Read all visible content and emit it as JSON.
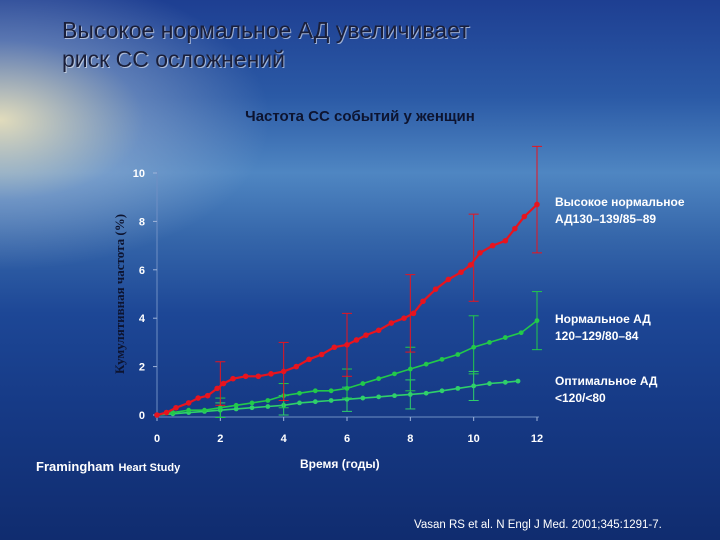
{
  "slide": {
    "title_line1": "Высокое нормальное АД увеличивает",
    "title_line2": "риск СС осложнений",
    "citation": "Vasan RS et al. N Engl J Med. 2001;345:1291-7.",
    "study_name": "Framingham",
    "study_suffix": "Heart Study"
  },
  "chart_data": {
    "type": "line",
    "title": "Частота СС событий у женщин",
    "xlabel": "Время (годы)",
    "ylabel": "Кумулятивная частота (%)",
    "xlim": [
      0,
      12
    ],
    "ylim": [
      0,
      10
    ],
    "xticks": [
      "0",
      "2",
      "4",
      "6",
      "8",
      "10",
      "12"
    ],
    "yticks": [
      "0",
      "2",
      "4",
      "6",
      "8",
      "10"
    ],
    "grid": false,
    "legend_placement": "right",
    "series": [
      {
        "name_line1": "Высокое нормальное",
        "name_line2": "АД130–139/85–89",
        "color": "#e8141e",
        "points": [
          [
            0,
            0
          ],
          [
            0.3,
            0.1
          ],
          [
            0.6,
            0.3
          ],
          [
            1.0,
            0.5
          ],
          [
            1.3,
            0.7
          ],
          [
            1.6,
            0.8
          ],
          [
            1.9,
            1.1
          ],
          [
            2.1,
            1.3
          ],
          [
            2.4,
            1.5
          ],
          [
            2.8,
            1.6
          ],
          [
            3.2,
            1.6
          ],
          [
            3.6,
            1.7
          ],
          [
            4.0,
            1.8
          ],
          [
            4.4,
            2.0
          ],
          [
            4.8,
            2.3
          ],
          [
            5.2,
            2.5
          ],
          [
            5.6,
            2.8
          ],
          [
            6.0,
            2.9
          ],
          [
            6.3,
            3.1
          ],
          [
            6.6,
            3.3
          ],
          [
            7.0,
            3.5
          ],
          [
            7.4,
            3.8
          ],
          [
            7.8,
            4.0
          ],
          [
            8.1,
            4.2
          ],
          [
            8.4,
            4.7
          ],
          [
            8.8,
            5.2
          ],
          [
            9.2,
            5.6
          ],
          [
            9.6,
            5.9
          ],
          [
            9.9,
            6.2
          ],
          [
            10.2,
            6.7
          ],
          [
            10.6,
            7.0
          ],
          [
            11.0,
            7.2
          ],
          [
            11.3,
            7.7
          ],
          [
            11.6,
            8.2
          ],
          [
            12.0,
            8.7
          ]
        ],
        "error_bars": [
          [
            2.0,
            1.3,
            0.9
          ],
          [
            4.0,
            1.8,
            1.2
          ],
          [
            6.0,
            2.9,
            1.3
          ],
          [
            8.0,
            4.2,
            1.6
          ],
          [
            10.0,
            6.5,
            1.8
          ],
          [
            12.0,
            8.9,
            2.2
          ]
        ]
      },
      {
        "name_line1": "Нормальное АД",
        "name_line2": "120–129/80–84",
        "color": "#22c94a",
        "points": [
          [
            0,
            0
          ],
          [
            0.5,
            0.1
          ],
          [
            1.0,
            0.2
          ],
          [
            1.5,
            0.2
          ],
          [
            2.0,
            0.3
          ],
          [
            2.5,
            0.4
          ],
          [
            3.0,
            0.5
          ],
          [
            3.5,
            0.6
          ],
          [
            4.0,
            0.8
          ],
          [
            4.5,
            0.9
          ],
          [
            5.0,
            1.0
          ],
          [
            5.5,
            1.0
          ],
          [
            6.0,
            1.1
          ],
          [
            6.5,
            1.3
          ],
          [
            7.0,
            1.5
          ],
          [
            7.5,
            1.7
          ],
          [
            8.0,
            1.9
          ],
          [
            8.5,
            2.1
          ],
          [
            9.0,
            2.3
          ],
          [
            9.5,
            2.5
          ],
          [
            10.0,
            2.8
          ],
          [
            10.5,
            3.0
          ],
          [
            11.0,
            3.2
          ],
          [
            11.5,
            3.4
          ],
          [
            12.0,
            3.9
          ]
        ],
        "error_bars": [
          [
            2.0,
            0.3,
            0.4
          ],
          [
            4.0,
            0.8,
            0.5
          ],
          [
            6.0,
            1.3,
            0.6
          ],
          [
            8.0,
            1.9,
            0.9
          ],
          [
            10.0,
            2.9,
            1.2
          ],
          [
            12.0,
            3.9,
            1.2
          ]
        ]
      },
      {
        "name_line1": "Оптимальное АД",
        "name_line2": "<120/<80",
        "color": "#2fd06a",
        "points": [
          [
            0,
            0
          ],
          [
            0.5,
            0.05
          ],
          [
            1.0,
            0.1
          ],
          [
            1.5,
            0.15
          ],
          [
            2.0,
            0.2
          ],
          [
            2.5,
            0.25
          ],
          [
            3.0,
            0.3
          ],
          [
            3.5,
            0.35
          ],
          [
            4.0,
            0.4
          ],
          [
            4.5,
            0.5
          ],
          [
            5.0,
            0.55
          ],
          [
            5.5,
            0.6
          ],
          [
            6.0,
            0.65
          ],
          [
            6.5,
            0.7
          ],
          [
            7.0,
            0.75
          ],
          [
            7.5,
            0.8
          ],
          [
            8.0,
            0.85
          ],
          [
            8.5,
            0.9
          ],
          [
            9.0,
            1.0
          ],
          [
            9.5,
            1.1
          ],
          [
            10.0,
            1.2
          ],
          [
            10.5,
            1.3
          ],
          [
            11.0,
            1.35
          ],
          [
            11.4,
            1.4
          ]
        ],
        "error_bars": [
          [
            2.0,
            0.2,
            0.3
          ],
          [
            4.0,
            0.4,
            0.4
          ],
          [
            6.0,
            0.65,
            0.5
          ],
          [
            8.0,
            0.85,
            0.6
          ],
          [
            10.0,
            1.2,
            0.6
          ]
        ]
      }
    ]
  }
}
